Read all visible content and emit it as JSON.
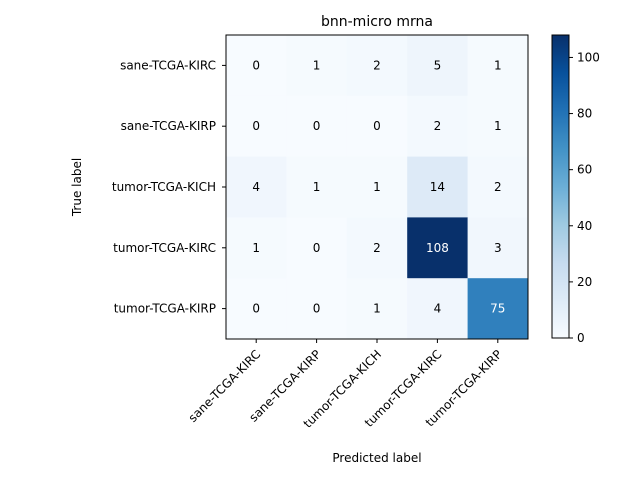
{
  "chart_data": {
    "type": "heatmap",
    "title": "bnn-micro mrna",
    "xlabel": "Predicted label",
    "ylabel": "True label",
    "x_categories": [
      "sane-TCGA-KIRC",
      "sane-TCGA-KIRP",
      "tumor-TCGA-KICH",
      "tumor-TCGA-KIRC",
      "tumor-TCGA-KIRP"
    ],
    "y_categories": [
      "sane-TCGA-KIRC",
      "sane-TCGA-KIRP",
      "tumor-TCGA-KICH",
      "tumor-TCGA-KIRC",
      "tumor-TCGA-KIRP"
    ],
    "matrix": [
      [
        0,
        1,
        2,
        5,
        1
      ],
      [
        0,
        0,
        0,
        2,
        1
      ],
      [
        4,
        1,
        1,
        14,
        2
      ],
      [
        1,
        0,
        2,
        108,
        3
      ],
      [
        0,
        0,
        1,
        4,
        75
      ]
    ],
    "colormap": "Blues",
    "colorbar": {
      "min": 0,
      "max": 108,
      "ticks": [
        0,
        20,
        40,
        60,
        80,
        100
      ]
    },
    "grid": false,
    "x_tick_rotation_deg": 45
  }
}
